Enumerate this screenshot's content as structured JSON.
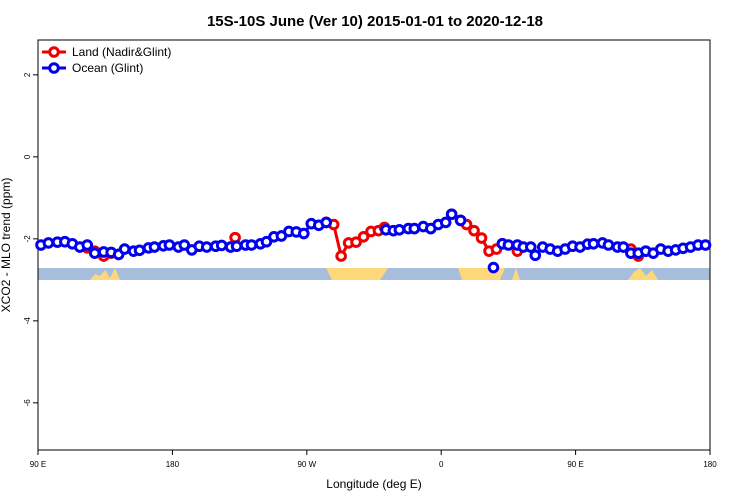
{
  "chart_data": {
    "type": "line",
    "title": "15S-10S June (Ver 10)   2015-01-01 to 2020-12-18",
    "xlabel": "Longitude (deg E)",
    "ylabel": "XCO2 - MLO trend (ppm)",
    "xlim": [
      90,
      540
    ],
    "xticks": [
      {
        "value": 90,
        "label": "90 E"
      },
      180,
      {
        "value": 270,
        "label": "90 W"
      },
      {
        "value": 360,
        "label": "0"
      },
      {
        "value": 450,
        "label": "90 E"
      },
      {
        "value": 540,
        "label": "180"
      }
    ],
    "ylim": [
      -7.15,
      2.85
    ],
    "yticks": [
      -6,
      -4,
      -2,
      0,
      2
    ],
    "legend": "top-left",
    "series": [
      {
        "name": "Land (Nadir&Glint)",
        "color": "#ee0000",
        "x": [
          123,
          128,
          134,
          139,
          144,
          180,
          222,
          250,
          283,
          288,
          293,
          298,
          303,
          308,
          313,
          318,
          322,
          345,
          367,
          373,
          377,
          382,
          387,
          392,
          397,
          401,
          406,
          411,
          450,
          487,
          492,
          497
        ],
        "values": [
          -2.22,
          -2.3,
          -2.42,
          -2.35,
          -2.38,
          null,
          -1.97,
          null,
          -1.6,
          -1.65,
          -2.42,
          -2.1,
          -2.08,
          -1.95,
          -1.82,
          -1.8,
          -1.72,
          null,
          -1.4,
          -1.55,
          -1.65,
          -1.8,
          -1.98,
          -2.3,
          -2.25,
          -2.12,
          null,
          -2.3,
          null,
          -2.25,
          -2.42,
          -2.3
        ]
      },
      {
        "name": "Ocean (Glint)",
        "color": "#0000ee",
        "x": [
          92,
          97,
          103,
          108,
          113,
          118,
          123,
          128,
          134,
          139,
          144,
          148,
          154,
          158,
          164,
          168,
          174,
          178,
          184,
          188,
          193,
          198,
          203,
          209,
          213,
          219,
          223,
          229,
          233,
          239,
          243,
          248,
          253,
          258,
          263,
          268,
          273,
          278,
          283,
          303,
          323,
          328,
          332,
          338,
          342,
          348,
          353,
          358,
          363,
          367,
          373,
          384,
          395,
          398,
          401,
          405,
          411,
          415,
          420,
          423,
          428,
          433,
          438,
          443,
          448,
          453,
          458,
          462,
          468,
          472,
          478,
          482,
          487,
          492,
          497,
          502,
          507,
          512,
          517,
          522,
          527,
          532,
          537
        ],
        "values": [
          -2.15,
          -2.1,
          -2.08,
          -2.07,
          -2.12,
          -2.2,
          -2.15,
          -2.35,
          -2.32,
          -2.33,
          -2.38,
          -2.25,
          -2.3,
          -2.28,
          -2.22,
          -2.2,
          -2.17,
          -2.15,
          -2.2,
          -2.15,
          -2.27,
          -2.18,
          -2.2,
          -2.18,
          -2.16,
          -2.2,
          -2.18,
          -2.15,
          -2.15,
          -2.12,
          -2.07,
          -1.95,
          -1.93,
          -1.82,
          -1.83,
          -1.87,
          -1.63,
          -1.67,
          -1.6,
          null,
          -1.78,
          -1.8,
          -1.78,
          -1.75,
          -1.75,
          -1.7,
          -1.75,
          -1.65,
          -1.6,
          -1.4,
          -1.55,
          null,
          -2.7,
          null,
          -2.12,
          -2.15,
          -2.15,
          -2.2,
          -2.2,
          -2.4,
          -2.2,
          -2.25,
          -2.3,
          -2.25,
          -2.18,
          -2.2,
          -2.13,
          -2.12,
          -2.1,
          -2.15,
          -2.2,
          -2.2,
          -2.35,
          -2.35,
          -2.3,
          -2.35,
          -2.25,
          -2.3,
          -2.27,
          -2.23,
          -2.2,
          -2.15,
          -2.15
        ]
      }
    ]
  }
}
